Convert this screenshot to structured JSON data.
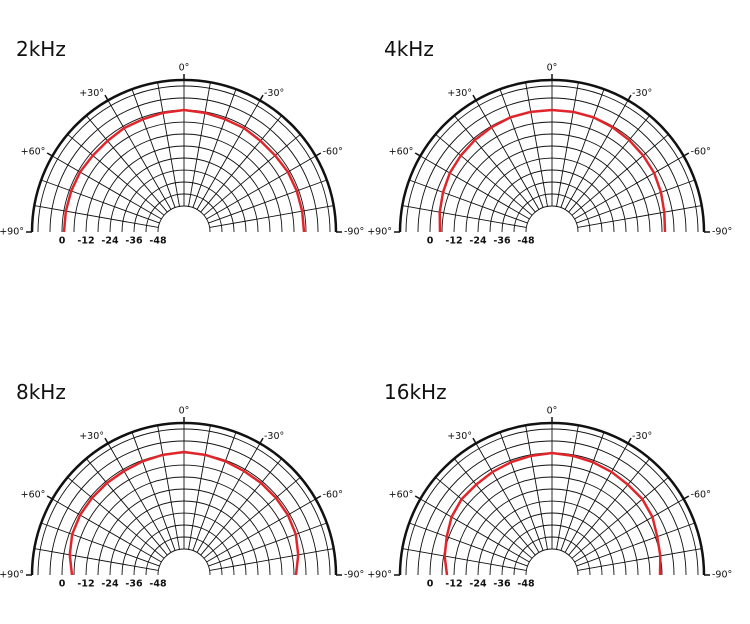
{
  "chart_data": [
    {
      "type": "polar",
      "title": "2kHz",
      "color": "#e0262b",
      "theta": [
        -90,
        -80,
        -70,
        -60,
        -50,
        -40,
        -30,
        -20,
        -10,
        0,
        10,
        20,
        30,
        40,
        50,
        60,
        70,
        80,
        90
      ],
      "values": [
        -1,
        -1,
        -1,
        -1,
        -1.5,
        -1.5,
        -1,
        -1,
        -0.5,
        0,
        -0.5,
        -1,
        -1,
        -1.5,
        -1.5,
        -1,
        -1,
        -1,
        -1
      ],
      "rlim": [
        -48,
        15
      ],
      "rticks": [
        0,
        -12,
        -24,
        -36,
        -48
      ],
      "rgrid": [
        -42,
        -36,
        -30,
        -24,
        -18,
        -12,
        -6,
        0,
        6,
        12
      ],
      "thetaticks": [
        {
          "value": 0,
          "label": "0°"
        },
        {
          "value": 30,
          "label": "+30°"
        },
        {
          "value": -30,
          "label": "-30°"
        },
        {
          "value": 60,
          "label": "+60°"
        },
        {
          "value": -60,
          "label": "-60°"
        },
        {
          "value": 90,
          "label": "+90°"
        },
        {
          "value": -90,
          "label": "-90°"
        }
      ],
      "thetagrid": [
        -80,
        -70,
        -60,
        -50,
        -40,
        -30,
        -20,
        -10,
        0,
        10,
        20,
        30,
        40,
        50,
        60,
        70,
        80
      ]
    },
    {
      "type": "polar",
      "title": "4kHz",
      "color": "#e0262b",
      "theta": [
        -90,
        -80,
        -70,
        -60,
        -50,
        -40,
        -30,
        -20,
        -10,
        0,
        10,
        20,
        30,
        40,
        50,
        60,
        70,
        80,
        90
      ],
      "values": [
        -4.5,
        -4,
        -3,
        -2,
        -1.5,
        -1,
        -0.5,
        0,
        0,
        0,
        0,
        0,
        -0.5,
        -1,
        -1.5,
        -2,
        -3,
        -4,
        -5
      ],
      "rlim": [
        -48,
        15
      ],
      "rticks": [
        0,
        -12,
        -24,
        -36,
        -48
      ],
      "rgrid": [
        -42,
        -36,
        -30,
        -24,
        -18,
        -12,
        -6,
        0,
        6,
        12
      ],
      "thetaticks": [
        {
          "value": 0,
          "label": "0°"
        },
        {
          "value": 30,
          "label": "+30°"
        },
        {
          "value": -30,
          "label": "-30°"
        },
        {
          "value": 60,
          "label": "+60°"
        },
        {
          "value": -60,
          "label": "-60°"
        },
        {
          "value": 90,
          "label": "+90°"
        },
        {
          "value": -90,
          "label": "-90°"
        }
      ],
      "thetagrid": [
        -80,
        -70,
        -60,
        -50,
        -40,
        -30,
        -20,
        -10,
        0,
        10,
        20,
        30,
        40,
        50,
        60,
        70,
        80
      ]
    },
    {
      "type": "polar",
      "title": "8kHz",
      "color": "#e0262b",
      "theta": [
        -90,
        -80,
        -70,
        -60,
        -50,
        -40,
        -30,
        -20,
        -10,
        0,
        10,
        20,
        30,
        40,
        50,
        60,
        70,
        80,
        90
      ],
      "values": [
        -5,
        -3,
        -1.5,
        -1,
        -1,
        -1,
        -1,
        -0.5,
        0,
        0.5,
        0,
        -0.5,
        -1,
        -1,
        -1,
        -1,
        -1.5,
        -3,
        -5
      ],
      "rlim": [
        -48,
        15
      ],
      "rticks": [
        0,
        -12,
        -24,
        -36,
        -48
      ],
      "rgrid": [
        -42,
        -36,
        -30,
        -24,
        -18,
        -12,
        -6,
        0,
        6,
        12
      ],
      "thetaticks": [
        {
          "value": 0,
          "label": "0°"
        },
        {
          "value": 30,
          "label": "+30°"
        },
        {
          "value": -30,
          "label": "-30°"
        },
        {
          "value": 60,
          "label": "+60°"
        },
        {
          "value": -60,
          "label": "-60°"
        },
        {
          "value": 90,
          "label": "+90°"
        },
        {
          "value": -90,
          "label": "-90°"
        }
      ],
      "thetagrid": [
        -80,
        -70,
        -60,
        -50,
        -40,
        -30,
        -20,
        -10,
        0,
        10,
        20,
        30,
        40,
        50,
        60,
        70,
        80
      ]
    },
    {
      "type": "polar",
      "title": "16kHz",
      "color": "#e0262b",
      "theta": [
        -90,
        -80,
        -70,
        -60,
        -50,
        -40,
        -30,
        -20,
        -10,
        0,
        10,
        20,
        30,
        40,
        50,
        60,
        70,
        80,
        90
      ],
      "values": [
        -7,
        -6,
        -5,
        -3,
        -2,
        -2,
        -1.5,
        -1,
        -0.5,
        0,
        -0.5,
        -1,
        -1.5,
        -2,
        -2,
        -3,
        -5,
        -6.5,
        -8.5
      ],
      "rlim": [
        -48,
        15
      ],
      "rticks": [
        0,
        -12,
        -24,
        -36,
        -48
      ],
      "rgrid": [
        -42,
        -36,
        -30,
        -24,
        -18,
        -12,
        -6,
        0,
        6,
        12
      ],
      "thetaticks": [
        {
          "value": 0,
          "label": "0°"
        },
        {
          "value": 30,
          "label": "+30°"
        },
        {
          "value": -30,
          "label": "-30°"
        },
        {
          "value": 60,
          "label": "+60°"
        },
        {
          "value": -60,
          "label": "-60°"
        },
        {
          "value": 90,
          "label": "+90°"
        },
        {
          "value": -90,
          "label": "-90°"
        }
      ],
      "thetagrid": [
        -80,
        -70,
        -60,
        -50,
        -40,
        -30,
        -20,
        -10,
        0,
        10,
        20,
        30,
        40,
        50,
        60,
        70,
        80
      ]
    }
  ]
}
